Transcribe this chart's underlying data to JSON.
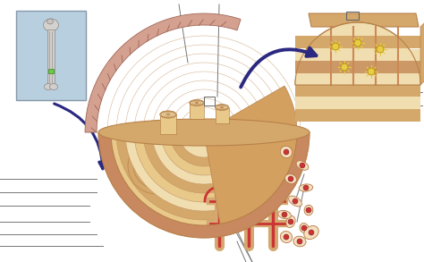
{
  "bg_color": "#ffffff",
  "inset_box_color": "#b8cfe0",
  "bone_light": "#e8c98a",
  "bone_mid": "#d4a86a",
  "bone_dark": "#b8824a",
  "bone_very_light": "#f0ddb0",
  "red_vessel": "#cc3333",
  "red_vessel_dark": "#993333",
  "spongy_fill": "#d4a060",
  "periosteum_color": "#c8887a",
  "arrow_color": "#2a2880",
  "label_color": "#777777",
  "mag_bg": "#d4a870",
  "mag_layer1": "#c8886a",
  "mag_layer2": "#e0c090",
  "yellow_cell": "#e8cc44",
  "figsize": [
    4.74,
    2.93
  ],
  "dpi": 100
}
